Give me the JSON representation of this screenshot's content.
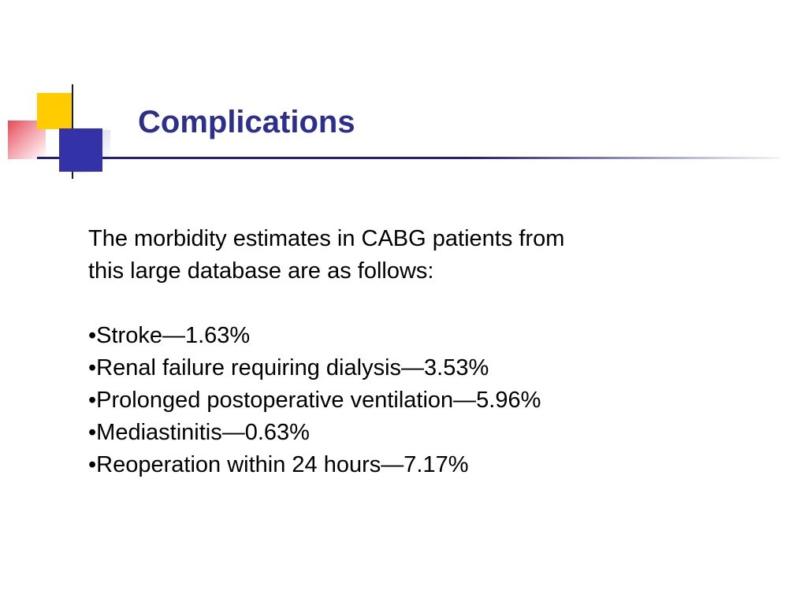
{
  "slide": {
    "title": "Complications",
    "intro": {
      "line1": "The morbidity estimates in CABG patients from",
      "line2": "this large database are as follows:"
    },
    "bullet_char": "•",
    "bullets": [
      "Stroke—1.63%",
      "Renal failure requiring dialysis—3.53%",
      "Prolonged postoperative ventilation—5.96%",
      "Mediastinitis—0.63%",
      "Reoperation within 24 hours—7.17%"
    ],
    "colors": {
      "title_text": "#2d2f8f",
      "underline_dark": "#20207a",
      "accent_blue_square": "#3333a7",
      "accent_yellow_square": "#ffcc00",
      "accent_pink_square": "#e44b56",
      "body_text": "#000000"
    }
  }
}
